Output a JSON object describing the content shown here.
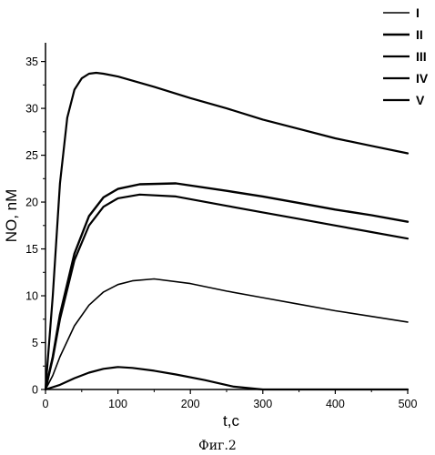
{
  "chart_data": {
    "type": "line",
    "xlabel": "t,c",
    "ylabel": "NO, nM",
    "xlim": [
      0,
      500
    ],
    "ylim": [
      0,
      37
    ],
    "xticks": [
      0,
      100,
      200,
      300,
      400,
      500
    ],
    "yticks": [
      0,
      5,
      10,
      15,
      20,
      25,
      30,
      35
    ],
    "legend_position": "top-right",
    "grid": false,
    "caption": "Фиг.2",
    "series": [
      {
        "name": "I",
        "x": [
          0,
          10,
          20,
          40,
          60,
          80,
          100,
          120,
          150,
          200,
          250,
          300,
          350,
          400,
          450,
          500
        ],
        "y": [
          0,
          1.5,
          3.5,
          6.8,
          9.0,
          10.4,
          11.2,
          11.6,
          11.8,
          11.3,
          10.5,
          9.8,
          9.1,
          8.4,
          7.8,
          7.2
        ]
      },
      {
        "name": "II",
        "x": [
          0,
          10,
          20,
          40,
          60,
          80,
          100,
          130,
          180,
          250,
          300,
          350,
          400,
          450,
          500
        ],
        "y": [
          0,
          3.5,
          8.0,
          14.5,
          18.5,
          20.5,
          21.4,
          21.9,
          22.0,
          21.2,
          20.6,
          19.9,
          19.2,
          18.6,
          17.9
        ]
      },
      {
        "name": "III",
        "x": [
          0,
          10,
          20,
          40,
          60,
          80,
          100,
          130,
          180,
          250,
          300,
          350,
          400,
          450,
          500
        ],
        "y": [
          0,
          3.3,
          7.5,
          13.8,
          17.5,
          19.5,
          20.4,
          20.8,
          20.6,
          19.6,
          18.9,
          18.2,
          17.5,
          16.8,
          16.1
        ]
      },
      {
        "name": "IV",
        "x": [
          0,
          10,
          20,
          30,
          40,
          50,
          60,
          70,
          80,
          100,
          150,
          200,
          250,
          300,
          350,
          400,
          450,
          500
        ],
        "y": [
          0,
          10,
          22,
          29,
          32,
          33.2,
          33.7,
          33.8,
          33.7,
          33.4,
          32.3,
          31.1,
          30.0,
          28.8,
          27.8,
          26.8,
          26.0,
          25.2
        ]
      },
      {
        "name": "V",
        "x": [
          0,
          20,
          40,
          60,
          80,
          100,
          120,
          150,
          180,
          220,
          260,
          300,
          350,
          400,
          450,
          500
        ],
        "y": [
          0,
          0.5,
          1.2,
          1.8,
          2.2,
          2.4,
          2.3,
          2.0,
          1.6,
          1.0,
          0.3,
          0,
          0,
          0,
          0,
          0
        ]
      }
    ]
  }
}
